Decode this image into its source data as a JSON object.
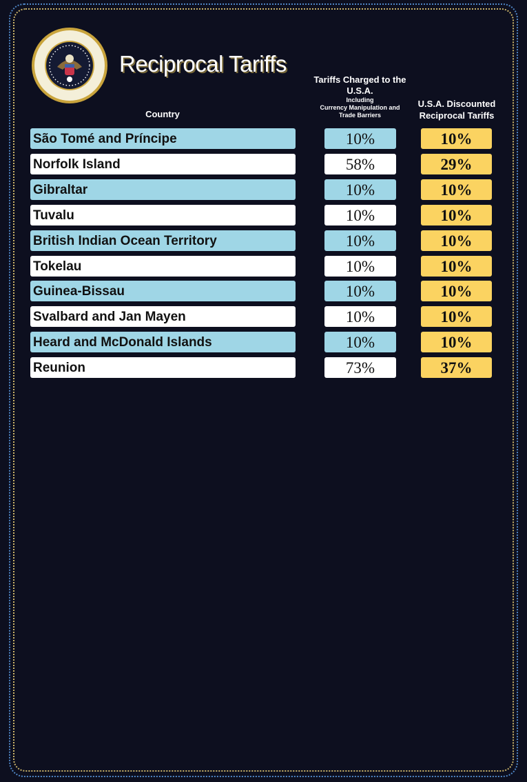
{
  "title": "Reciprocal Tariffs",
  "seal_text": "SEAL OF THE PRESIDENT OF THE UNITED STATES",
  "colors": {
    "background": "#0d0f1f",
    "row_alt": "#9fd6e6",
    "row_plain": "#ffffff",
    "discount": "#fbd361"
  },
  "headers": {
    "country": "Country",
    "charged_main": "Tariffs Charged to the U.S.A.",
    "charged_sub1": "Including",
    "charged_sub2": "Currency Manipulation and Trade Barriers",
    "discounted": "U.S.A. Discounted Reciprocal Tariffs"
  },
  "chart_data": {
    "type": "table",
    "title": "Reciprocal Tariffs",
    "columns": [
      "Country",
      "Tariffs Charged to the U.S.A. Including Currency Manipulation and Trade Barriers",
      "U.S.A. Discounted Reciprocal Tariffs"
    ],
    "rows": [
      {
        "country": "São Tomé and Príncipe",
        "charged": "10%",
        "discounted": "10%"
      },
      {
        "country": "Norfolk Island",
        "charged": "58%",
        "discounted": "29%"
      },
      {
        "country": "Gibraltar",
        "charged": "10%",
        "discounted": "10%"
      },
      {
        "country": "Tuvalu",
        "charged": "10%",
        "discounted": "10%"
      },
      {
        "country": "British Indian Ocean Territory",
        "charged": "10%",
        "discounted": "10%"
      },
      {
        "country": "Tokelau",
        "charged": "10%",
        "discounted": "10%"
      },
      {
        "country": "Guinea-Bissau",
        "charged": "10%",
        "discounted": "10%"
      },
      {
        "country": "Svalbard and Jan Mayen",
        "charged": "10%",
        "discounted": "10%"
      },
      {
        "country": "Heard and McDonald Islands",
        "charged": "10%",
        "discounted": "10%"
      },
      {
        "country": "Reunion",
        "charged": "73%",
        "discounted": "37%"
      }
    ]
  }
}
